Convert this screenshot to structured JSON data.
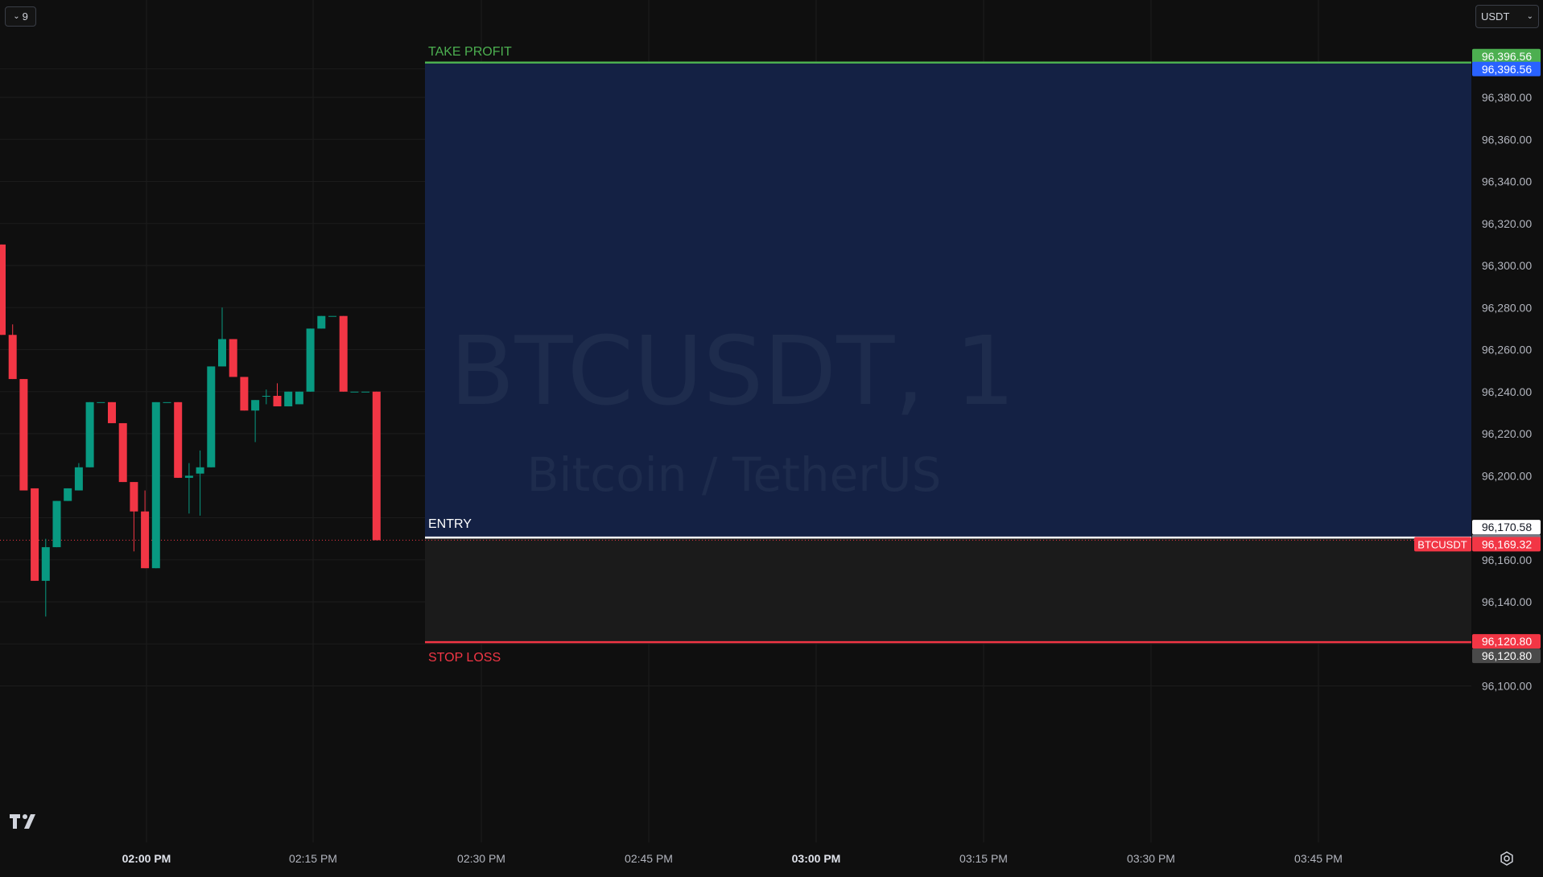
{
  "chart_data": {
    "type": "candlestick",
    "watermark": {
      "title": "BTCUSDT, 1",
      "subtitle": "Bitcoin / TetherUS"
    },
    "y_axis": {
      "range": [
        96095,
        96410
      ],
      "ticks": [
        96100,
        96120,
        96140,
        96160,
        96180,
        96200,
        96220,
        96240,
        96260,
        96280,
        96300,
        96320,
        96340,
        96360,
        96380
      ],
      "tick_labels": [
        "96,100.00",
        "",
        "96,140.00",
        "96,160.00",
        "",
        "96,200.00",
        "96,220.00",
        "96,240.00",
        "96,260.00",
        "96,280.00",
        "96,300.00",
        "96,320.00",
        "96,340.00",
        "96,360.00",
        "96,380.00"
      ]
    },
    "x_axis": {
      "ticks": [
        "02:00 PM",
        "02:15 PM",
        "02:30 PM",
        "02:45 PM",
        "03:00 PM",
        "03:15 PM",
        "03:30 PM",
        "03:45 PM"
      ],
      "bold": [
        true,
        false,
        false,
        false,
        true,
        false,
        false,
        false
      ]
    },
    "candles": [
      {
        "o": 96310,
        "h": 96310,
        "l": 96267,
        "c": 96267
      },
      {
        "o": 96267,
        "h": 96272,
        "l": 96246,
        "c": 96246
      },
      {
        "o": 96246,
        "h": 96246,
        "l": 96193,
        "c": 96193
      },
      {
        "o": 96194,
        "h": 96194,
        "l": 96150,
        "c": 96150
      },
      {
        "o": 96150,
        "h": 96170,
        "l": 96133,
        "c": 96166
      },
      {
        "o": 96166,
        "h": 96188,
        "l": 96166,
        "c": 96188
      },
      {
        "o": 96188,
        "h": 96194,
        "l": 96188,
        "c": 96194
      },
      {
        "o": 96193,
        "h": 96206,
        "l": 96193,
        "c": 96204
      },
      {
        "o": 96204,
        "h": 96235,
        "l": 96204,
        "c": 96235
      },
      {
        "o": 96235,
        "h": 96235,
        "l": 96235,
        "c": 96235
      },
      {
        "o": 96235,
        "h": 96235,
        "l": 96225,
        "c": 96225
      },
      {
        "o": 96225,
        "h": 96225,
        "l": 96197,
        "c": 96197
      },
      {
        "o": 96197,
        "h": 96197,
        "l": 96164,
        "c": 96183
      },
      {
        "o": 96183,
        "h": 96193,
        "l": 96156,
        "c": 96156
      },
      {
        "o": 96156,
        "h": 96235,
        "l": 96156,
        "c": 96235
      },
      {
        "o": 96235,
        "h": 96235,
        "l": 96235,
        "c": 96235
      },
      {
        "o": 96235,
        "h": 96235,
        "l": 96199,
        "c": 96199
      },
      {
        "o": 96199,
        "h": 96206,
        "l": 96182,
        "c": 96200
      },
      {
        "o": 96201,
        "h": 96212,
        "l": 96181,
        "c": 96204
      },
      {
        "o": 96204,
        "h": 96252,
        "l": 96204,
        "c": 96252
      },
      {
        "o": 96252,
        "h": 96280,
        "l": 96252,
        "c": 96265
      },
      {
        "o": 96265,
        "h": 96265,
        "l": 96247,
        "c": 96247
      },
      {
        "o": 96247,
        "h": 96247,
        "l": 96231,
        "c": 96231
      },
      {
        "o": 96231,
        "h": 96236,
        "l": 96216,
        "c": 96236
      },
      {
        "o": 96238,
        "h": 96241,
        "l": 96234,
        "c": 96238
      },
      {
        "o": 96238,
        "h": 96244,
        "l": 96233,
        "c": 96233
      },
      {
        "o": 96233,
        "h": 96240,
        "l": 96233,
        "c": 96240
      },
      {
        "o": 96234,
        "h": 96240,
        "l": 96234,
        "c": 96240
      },
      {
        "o": 96240,
        "h": 96270,
        "l": 96240,
        "c": 96270
      },
      {
        "o": 96270,
        "h": 96276,
        "l": 96270,
        "c": 96276
      },
      {
        "o": 96276,
        "h": 96276,
        "l": 96276,
        "c": 96276
      },
      {
        "o": 96276,
        "h": 96276,
        "l": 96240,
        "c": 96240
      },
      {
        "o": 96240,
        "h": 96240,
        "l": 96240,
        "c": 96240
      },
      {
        "o": 96240,
        "h": 96240,
        "l": 96240,
        "c": 96240
      },
      {
        "o": 96240,
        "h": 96240,
        "l": 96169.32,
        "c": 96169.32
      }
    ],
    "position": {
      "take_profit": 96396.56,
      "entry": 96170.58,
      "stop_loss": 96120.8,
      "take_profit_label": "TAKE PROFIT",
      "entry_label": "ENTRY",
      "stop_loss_label": "STOP LOSS"
    },
    "last_price": 96169.32,
    "price_labels": [
      {
        "text": "96,396.56",
        "price": 96396.56,
        "bg": "#4caf50",
        "fg": "#ffffff",
        "offset": -8
      },
      {
        "text": "96,396.56",
        "price": 96396.56,
        "bg": "#2962ff",
        "fg": "#ffffff",
        "offset": 8
      },
      {
        "text": "96,170.58",
        "price": 96170.58,
        "bg": "#ffffff",
        "fg": "#131722",
        "offset": -13
      },
      {
        "text": "96,170.58",
        "price": 96170.58,
        "bg": "#787b86",
        "fg": "#ffffff",
        "offset": 5
      },
      {
        "text": "96,169.32",
        "price": 96169.32,
        "bg": "#f23645",
        "fg": "#ffffff",
        "offset": 5,
        "tag": "BTCUSDT"
      },
      {
        "text": "96,120.80",
        "price": 96120.8,
        "bg": "#f23645",
        "fg": "#ffffff",
        "offset": -1
      },
      {
        "text": "96,120.80",
        "price": 96120.8,
        "bg": "#4a4a4a",
        "fg": "#ffffff",
        "offset": 17
      }
    ]
  },
  "toolbar": {
    "collapse_count": "9",
    "currency": "USDT"
  },
  "colors": {
    "up": "#089981",
    "down": "#f23645",
    "profit_zone": "#142144",
    "loss_zone": "#1b1b1b",
    "take_profit": "#4caf50",
    "stop_loss": "#f23645",
    "entry": "#ffffff",
    "grid": "#1c1c1c",
    "axis_text": "#b2b5be"
  },
  "icons": {
    "logo": "tradingview-logo-icon",
    "settings": "settings-gear-icon",
    "collapse": "chevron-down-icon"
  }
}
